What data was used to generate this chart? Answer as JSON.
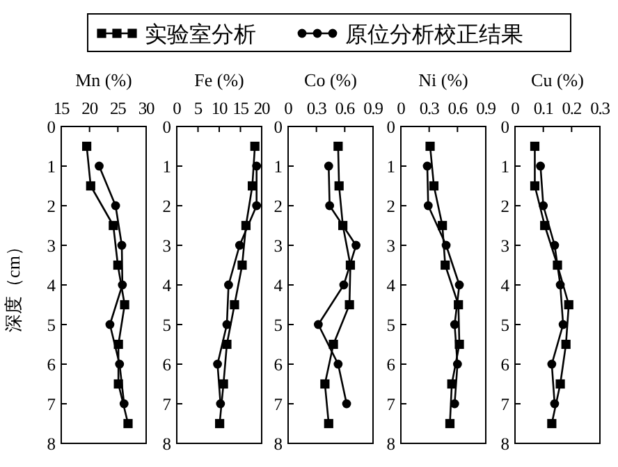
{
  "chart_data": [
    {
      "type": "line",
      "xlabel": "Mn (%)",
      "ylabel": "深度（cm）",
      "xlim": [
        15,
        30
      ],
      "xticks": [
        15,
        20,
        25,
        30
      ],
      "ylim": [
        8,
        0
      ],
      "yticks": [
        0,
        1,
        2,
        3,
        4,
        5,
        6,
        7,
        8
      ],
      "legend": "top",
      "series": [
        {
          "name": "实验室分析",
          "color": "#000000",
          "marker": "square",
          "x": [
            19.5,
            20.2,
            24.2,
            25,
            26.2,
            25.1,
            25.1,
            26.8
          ],
          "values": [
            0.5,
            1.5,
            2.5,
            3.5,
            4.5,
            5.5,
            6.5,
            7.5
          ]
        },
        {
          "name": "原位分析校正结果",
          "color": "#000000",
          "marker": "circle",
          "x": [
            21.7,
            24.6,
            25.7,
            25.8,
            23.6,
            25.3,
            26.1
          ],
          "values": [
            1,
            2,
            3,
            4,
            5,
            6,
            7
          ]
        }
      ]
    },
    {
      "type": "line",
      "xlabel": "Fe (%)",
      "xlim": [
        0,
        20
      ],
      "xticks": [
        0,
        5,
        10,
        15,
        20
      ],
      "ylim": [
        8,
        0
      ],
      "yticks": [
        0,
        1,
        2,
        3,
        4,
        5,
        6,
        7,
        8
      ],
      "series": [
        {
          "color": "#000000",
          "marker": "square",
          "x": [
            18.4,
            17.8,
            16.3,
            15.4,
            13.6,
            11.8,
            11,
            10.1
          ],
          "values": [
            0.5,
            1.5,
            2.5,
            3.5,
            4.5,
            5.5,
            6.5,
            7.5
          ]
        },
        {
          "color": "#000000",
          "marker": "circle",
          "x": [
            18.8,
            18.8,
            14.8,
            12.2,
            11.8,
            9.6,
            10.3
          ],
          "values": [
            1,
            2,
            3,
            4,
            5,
            6,
            7
          ]
        }
      ]
    },
    {
      "type": "line",
      "xlabel": "Co (%)",
      "xlim": [
        0,
        0.9
      ],
      "xticks": [
        0,
        0.3,
        0.6,
        0.9
      ],
      "ylim": [
        8,
        0
      ],
      "yticks": [
        0,
        1,
        2,
        3,
        4,
        5,
        6,
        7,
        8
      ],
      "series": [
        {
          "color": "#000000",
          "marker": "square",
          "x": [
            0.53,
            0.54,
            0.58,
            0.66,
            0.65,
            0.48,
            0.39,
            0.43
          ],
          "values": [
            0.5,
            1.5,
            2.5,
            3.5,
            4.5,
            5.5,
            6.5,
            7.5
          ]
        },
        {
          "color": "#000000",
          "marker": "circle",
          "x": [
            0.43,
            0.44,
            0.72,
            0.59,
            0.32,
            0.53,
            0.62
          ],
          "values": [
            1,
            2,
            3,
            4,
            5,
            6,
            7
          ]
        }
      ]
    },
    {
      "type": "line",
      "xlabel": "Ni (%)",
      "xlim": [
        0,
        0.9
      ],
      "xticks": [
        0,
        0.3,
        0.6,
        0.9
      ],
      "ylim": [
        8,
        0
      ],
      "yticks": [
        0,
        1,
        2,
        3,
        4,
        5,
        6,
        7,
        8
      ],
      "series": [
        {
          "color": "#000000",
          "marker": "square",
          "x": [
            0.31,
            0.35,
            0.44,
            0.47,
            0.61,
            0.62,
            0.54,
            0.52
          ],
          "values": [
            0.5,
            1.5,
            2.5,
            3.5,
            4.5,
            5.5,
            6.5,
            7.5
          ]
        },
        {
          "color": "#000000",
          "marker": "circle",
          "x": [
            0.28,
            0.29,
            0.48,
            0.62,
            0.57,
            0.6,
            0.57
          ],
          "values": [
            1,
            2,
            3,
            4,
            5,
            6,
            7
          ]
        }
      ]
    },
    {
      "type": "line",
      "xlabel": "Cu (%)",
      "xlim": [
        0,
        0.3
      ],
      "xticks": [
        0,
        0.1,
        0.2,
        0.3
      ],
      "ylim": [
        8,
        0
      ],
      "yticks": [
        0,
        1,
        2,
        3,
        4,
        5,
        6,
        7,
        8
      ],
      "series": [
        {
          "color": "#000000",
          "marker": "square",
          "x": [
            0.07,
            0.07,
            0.105,
            0.15,
            0.19,
            0.18,
            0.16,
            0.13
          ],
          "values": [
            0.5,
            1.5,
            2.5,
            3.5,
            4.5,
            5.5,
            6.5,
            7.5
          ]
        },
        {
          "color": "#000000",
          "marker": "circle",
          "x": [
            0.09,
            0.1,
            0.14,
            0.16,
            0.17,
            0.13,
            0.14
          ],
          "values": [
            1,
            2,
            3,
            4,
            5,
            6,
            7
          ]
        }
      ]
    }
  ]
}
